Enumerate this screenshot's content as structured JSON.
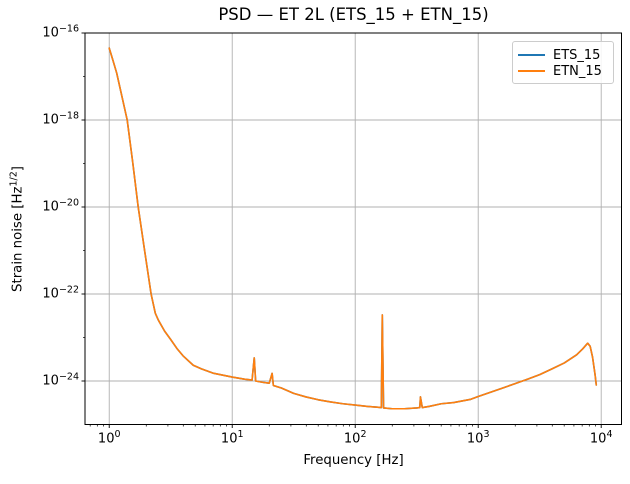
{
  "chart_data": {
    "type": "line",
    "title": "PSD — ET 2L (ETS_15 + ETN_15)",
    "xlabel": "Frequency [Hz]",
    "ylabel": "Strain noise [Hz^{1/2}]",
    "ylabel_parts": {
      "pre": "Strain noise [Hz",
      "sup": "1/2",
      "post": "]"
    },
    "x_scale": "log",
    "y_scale": "log",
    "grid": true,
    "legend_position": "upper right",
    "axes": {
      "x_tick_exponents": [
        0,
        1,
        2,
        3,
        4
      ],
      "y_tick_exponents": [
        -16,
        -18,
        -20,
        -22,
        -24
      ],
      "y_minor_exponents": [
        -17,
        -19,
        -21,
        -23,
        -25
      ],
      "x_log_range": [
        -0.197,
        4.165
      ],
      "y_exp_range": [
        -25,
        -16
      ],
      "xlim": [
        0.64,
        14600
      ],
      "ylim": [
        1e-25,
        1e-16
      ]
    },
    "style": {
      "grid_color": "#b0b0b0",
      "spine_color": "#000000",
      "background": "#ffffff",
      "line_width": 1.6
    },
    "series": [
      {
        "name": "ETS_15",
        "color": "#1f77b4"
      },
      {
        "name": "ETN_15",
        "color": "#ff7f0e"
      }
    ],
    "curves_overlap": true,
    "points": [
      [
        1.0,
        4.5e-17
      ],
      [
        1.07,
        2.4e-17
      ],
      [
        1.15,
        1.2e-17
      ],
      [
        1.26,
        3.8e-18
      ],
      [
        1.4,
        1e-18
      ],
      [
        1.55,
        1.1e-19
      ],
      [
        1.72,
        1e-20
      ],
      [
        1.95,
        9e-22
      ],
      [
        2.19,
        1e-22
      ],
      [
        2.29,
        5.6e-23
      ],
      [
        2.37,
        3.6e-23
      ],
      [
        2.51,
        2.5e-23
      ],
      [
        2.82,
        1.4e-23
      ],
      [
        3.16,
        9e-24
      ],
      [
        3.55,
        5.6e-24
      ],
      [
        3.98,
        3.8e-24
      ],
      [
        4.82,
        2.3e-24
      ],
      [
        5.62,
        1.9e-24
      ],
      [
        7.08,
        1.5e-24
      ],
      [
        10.0,
        1.23e-24
      ],
      [
        12.6,
        1.1e-24
      ],
      [
        14.5,
        1.05e-24
      ],
      [
        15.1,
        3.4e-24
      ],
      [
        15.5,
        1e-24
      ],
      [
        17.8,
        9.3e-25
      ],
      [
        20.0,
        8.9e-25
      ],
      [
        21.1,
        1.5e-24
      ],
      [
        21.6,
        7.9e-25
      ],
      [
        25.1,
        6.9e-25
      ],
      [
        31.6,
        5.2e-25
      ],
      [
        39.8,
        4.3e-25
      ],
      [
        50.1,
        3.7e-25
      ],
      [
        63.1,
        3.3e-25
      ],
      [
        79.4,
        3e-25
      ],
      [
        100,
        2.8e-25
      ],
      [
        126,
        2.6e-25
      ],
      [
        151,
        2.5e-25
      ],
      [
        163,
        2.45e-25
      ],
      [
        166,
        3.3e-23
      ],
      [
        170,
        2.4e-25
      ],
      [
        200,
        2.3e-25
      ],
      [
        251,
        2.3e-25
      ],
      [
        316,
        2.4e-25
      ],
      [
        335,
        2.45e-25
      ],
      [
        339,
        4.3e-25
      ],
      [
        351,
        2.45e-25
      ],
      [
        398,
        2.6e-25
      ],
      [
        501,
        3e-25
      ],
      [
        631,
        3.2e-25
      ],
      [
        871,
        3.8e-25
      ],
      [
        1000,
        4.4e-25
      ],
      [
        1259,
        5.5e-25
      ],
      [
        1585,
        6.9e-25
      ],
      [
        1995,
        8.7e-25
      ],
      [
        2512,
        1.1e-24
      ],
      [
        3162,
        1.4e-24
      ],
      [
        3981,
        1.9e-24
      ],
      [
        5012,
        2.6e-24
      ],
      [
        6310,
        4e-24
      ],
      [
        7080,
        5.5e-24
      ],
      [
        7762,
        7.4e-24
      ],
      [
        8128,
        6.3e-24
      ],
      [
        8511,
        3.5e-24
      ],
      [
        8913,
        1.4e-24
      ],
      [
        9120,
        8.1e-25
      ]
    ]
  }
}
